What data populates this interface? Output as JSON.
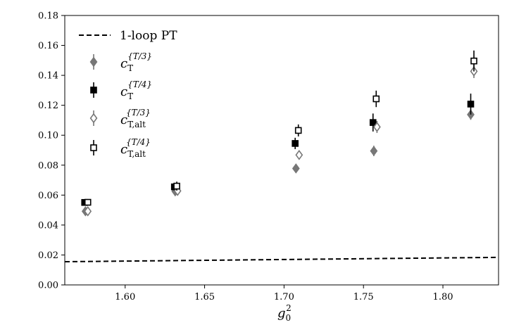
{
  "chart_data": {
    "type": "scatter",
    "xlabel": {
      "base": "g",
      "sub": "0",
      "sup": "2"
    },
    "ylabel": "",
    "xlim": [
      1.562,
      1.835
    ],
    "ylim": [
      0.0,
      0.18
    ],
    "xticks": [
      1.6,
      1.65,
      1.7,
      1.75,
      1.8
    ],
    "xtick_labels": [
      "1.60",
      "1.65",
      "1.70",
      "1.75",
      "1.80"
    ],
    "yticks": [
      0.0,
      0.02,
      0.04,
      0.06,
      0.08,
      0.1,
      0.12,
      0.14,
      0.16,
      0.18
    ],
    "ytick_labels": [
      "0.00",
      "0.02",
      "0.04",
      "0.06",
      "0.08",
      "0.10",
      "0.12",
      "0.14",
      "0.16",
      "0.18"
    ],
    "grid": false,
    "legend_position": "top-left",
    "line": {
      "label": "1-loop PT",
      "style": "dashed",
      "color": "#000000",
      "x": [
        1.562,
        1.835
      ],
      "y": [
        0.0155,
        0.0184
      ]
    },
    "series": [
      {
        "legend": {
          "base": "c",
          "sub": "T",
          "sup": "{T/3}"
        },
        "marker": "diamond",
        "filled": true,
        "color": "#777777",
        "x": [
          1.575,
          1.6315,
          1.7075,
          1.7565,
          1.8175
        ],
        "y": [
          0.0492,
          0.0625,
          0.0778,
          0.0895,
          0.1138
        ],
        "err": [
          0.0015,
          0.0025,
          0.0025,
          0.0035,
          0.0035
        ]
      },
      {
        "legend": {
          "base": "c",
          "sub": "T",
          "sup": "{T/4}"
        },
        "marker": "square",
        "filled": true,
        "color": "#000000",
        "x": [
          1.5745,
          1.631,
          1.707,
          1.756,
          1.8175
        ],
        "y": [
          0.0551,
          0.0655,
          0.0945,
          0.1085,
          0.1208
        ],
        "err": [
          0.002,
          0.0025,
          0.0038,
          0.006,
          0.007
        ]
      },
      {
        "legend": {
          "base": "c",
          "sub": "T,alt",
          "sup": "{T/3}"
        },
        "marker": "diamond",
        "filled": false,
        "color": "#777777",
        "x": [
          1.5765,
          1.633,
          1.7095,
          1.7585,
          1.8195
        ],
        "y": [
          0.0492,
          0.0628,
          0.0868,
          0.1055,
          0.1427
        ],
        "err": [
          0.0015,
          0.0025,
          0.003,
          0.004,
          0.0045
        ]
      },
      {
        "legend": {
          "base": "c",
          "sub": "T,alt",
          "sup": "{T/4}"
        },
        "marker": "square",
        "filled": false,
        "color": "#000000",
        "x": [
          1.5765,
          1.6325,
          1.709,
          1.758,
          1.8195
        ],
        "y": [
          0.0552,
          0.066,
          0.1032,
          0.1243,
          0.1496
        ],
        "err": [
          0.002,
          0.003,
          0.004,
          0.0055,
          0.007
        ]
      }
    ]
  }
}
